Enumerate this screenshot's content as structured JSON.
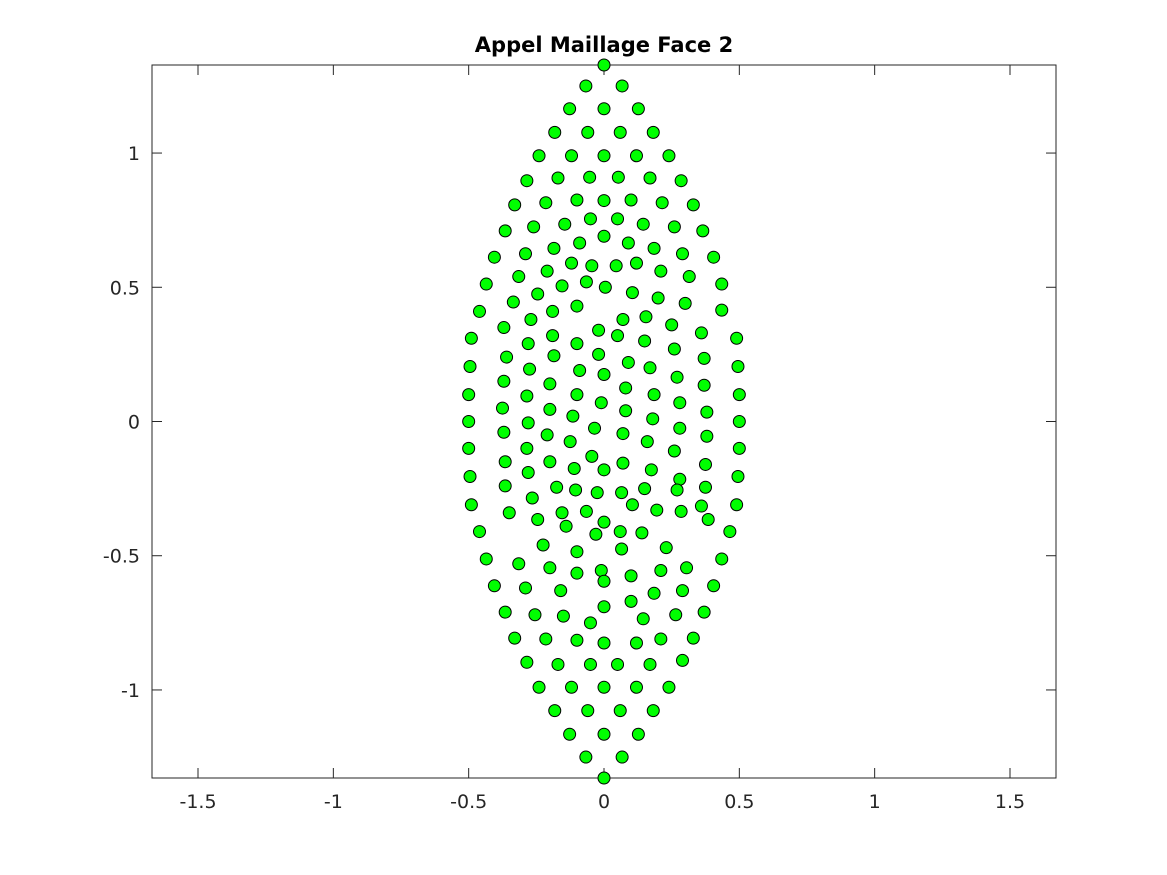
{
  "chart_data": {
    "type": "scatter",
    "title": "Appel Maillage Face 2",
    "xlabel": "",
    "ylabel": "",
    "xlim": [
      -1.67,
      1.67
    ],
    "ylim": [
      -1.328,
      1.328
    ],
    "xticks": [
      -1.5,
      -1,
      -0.5,
      0,
      0.5,
      1,
      1.5
    ],
    "xtick_labels": [
      "-1.5",
      "-1",
      "-0.5",
      "0",
      "0.5",
      "1",
      "1.5"
    ],
    "yticks": [
      -1,
      -0.5,
      0,
      0.5,
      1
    ],
    "ytick_labels": [
      "-1",
      "-0.5",
      "0",
      "0.5",
      "1"
    ],
    "grid": false,
    "legend": "none",
    "marker": {
      "shape": "circle",
      "face_color": "#00ff00",
      "edge_color": "#000000"
    },
    "axis_color": "#262626",
    "series": [
      {
        "points": [
          [
            0,
            1.328
          ],
          [
            -0.067,
            1.25
          ],
          [
            0.067,
            1.25
          ],
          [
            -0.127,
            1.165
          ],
          [
            0,
            1.165
          ],
          [
            0.127,
            1.165
          ],
          [
            -0.182,
            1.077
          ],
          [
            -0.06,
            1.077
          ],
          [
            0.06,
            1.077
          ],
          [
            0.182,
            1.077
          ],
          [
            -0.24,
            0.99
          ],
          [
            -0.12,
            0.99
          ],
          [
            0,
            0.99
          ],
          [
            0.12,
            0.99
          ],
          [
            0.24,
            0.99
          ],
          [
            -0.285,
            0.897
          ],
          [
            -0.17,
            0.907
          ],
          [
            -0.053,
            0.91
          ],
          [
            0.053,
            0.91
          ],
          [
            0.17,
            0.907
          ],
          [
            0.285,
            0.897
          ],
          [
            -0.33,
            0.807
          ],
          [
            -0.215,
            0.815
          ],
          [
            -0.1,
            0.825
          ],
          [
            0,
            0.823
          ],
          [
            0.1,
            0.825
          ],
          [
            0.215,
            0.815
          ],
          [
            0.33,
            0.807
          ],
          [
            -0.365,
            0.71
          ],
          [
            -0.26,
            0.725
          ],
          [
            -0.145,
            0.735
          ],
          [
            -0.05,
            0.755
          ],
          [
            0.05,
            0.755
          ],
          [
            0.145,
            0.735
          ],
          [
            0.26,
            0.725
          ],
          [
            0.365,
            0.71
          ],
          [
            -0.405,
            0.612
          ],
          [
            -0.29,
            0.625
          ],
          [
            -0.185,
            0.645
          ],
          [
            -0.09,
            0.665
          ],
          [
            0,
            0.69
          ],
          [
            0.09,
            0.665
          ],
          [
            0.185,
            0.645
          ],
          [
            0.29,
            0.625
          ],
          [
            0.405,
            0.612
          ],
          [
            -0.435,
            0.512
          ],
          [
            -0.315,
            0.54
          ],
          [
            -0.21,
            0.56
          ],
          [
            -0.12,
            0.59
          ],
          [
            -0.045,
            0.58
          ],
          [
            0.045,
            0.58
          ],
          [
            0.12,
            0.59
          ],
          [
            0.21,
            0.56
          ],
          [
            0.315,
            0.54
          ],
          [
            0.435,
            0.512
          ],
          [
            -0.46,
            0.41
          ],
          [
            -0.335,
            0.445
          ],
          [
            -0.245,
            0.475
          ],
          [
            -0.155,
            0.505
          ],
          [
            -0.065,
            0.52
          ],
          [
            0.005,
            0.5
          ],
          [
            0.105,
            0.48
          ],
          [
            0.2,
            0.46
          ],
          [
            0.3,
            0.44
          ],
          [
            0.435,
            0.415
          ],
          [
            -0.49,
            0.31
          ],
          [
            -0.37,
            0.35
          ],
          [
            -0.27,
            0.38
          ],
          [
            -0.19,
            0.41
          ],
          [
            -0.1,
            0.43
          ],
          [
            -0.02,
            0.34
          ],
          [
            0.07,
            0.38
          ],
          [
            0.155,
            0.39
          ],
          [
            0.25,
            0.36
          ],
          [
            0.36,
            0.33
          ],
          [
            0.49,
            0.31
          ],
          [
            -0.495,
            0.205
          ],
          [
            -0.36,
            0.24
          ],
          [
            -0.28,
            0.29
          ],
          [
            -0.19,
            0.32
          ],
          [
            -0.1,
            0.29
          ],
          [
            -0.02,
            0.25
          ],
          [
            0.05,
            0.32
          ],
          [
            0.15,
            0.3
          ],
          [
            0.26,
            0.27
          ],
          [
            0.37,
            0.235
          ],
          [
            0.495,
            0.205
          ],
          [
            -0.5,
            0.1
          ],
          [
            -0.37,
            0.15
          ],
          [
            -0.275,
            0.195
          ],
          [
            -0.185,
            0.245
          ],
          [
            -0.09,
            0.19
          ],
          [
            0,
            0.175
          ],
          [
            0.09,
            0.22
          ],
          [
            0.17,
            0.2
          ],
          [
            0.27,
            0.165
          ],
          [
            0.37,
            0.135
          ],
          [
            0.5,
            0.1
          ],
          [
            -0.5,
            0
          ],
          [
            -0.375,
            0.05
          ],
          [
            -0.285,
            0.095
          ],
          [
            -0.2,
            0.14
          ],
          [
            -0.1,
            0.1
          ],
          [
            -0.01,
            0.07
          ],
          [
            0.08,
            0.125
          ],
          [
            0.185,
            0.1
          ],
          [
            0.28,
            0.07
          ],
          [
            0.38,
            0.035
          ],
          [
            0.5,
            0
          ],
          [
            -0.5,
            -0.1
          ],
          [
            -0.37,
            -0.04
          ],
          [
            -0.28,
            -0.005
          ],
          [
            -0.2,
            0.045
          ],
          [
            -0.115,
            0.02
          ],
          [
            -0.035,
            -0.025
          ],
          [
            0.08,
            0.04
          ],
          [
            0.18,
            0.01
          ],
          [
            0.28,
            -0.025
          ],
          [
            0.38,
            -0.055
          ],
          [
            0.5,
            -0.1
          ],
          [
            -0.495,
            -0.205
          ],
          [
            -0.365,
            -0.15
          ],
          [
            -0.285,
            -0.1
          ],
          [
            -0.21,
            -0.05
          ],
          [
            -0.125,
            -0.075
          ],
          [
            -0.045,
            -0.13
          ],
          [
            0.07,
            -0.045
          ],
          [
            0.16,
            -0.075
          ],
          [
            0.26,
            -0.11
          ],
          [
            0.375,
            -0.16
          ],
          [
            0.495,
            -0.205
          ],
          [
            -0.49,
            -0.31
          ],
          [
            -0.365,
            -0.24
          ],
          [
            -0.28,
            -0.19
          ],
          [
            -0.2,
            -0.15
          ],
          [
            -0.11,
            -0.175
          ],
          [
            0,
            -0.18
          ],
          [
            0.07,
            -0.155
          ],
          [
            0.175,
            -0.18
          ],
          [
            0.28,
            -0.215
          ],
          [
            0.375,
            -0.245
          ],
          [
            0.49,
            -0.31
          ],
          [
            -0.46,
            -0.41
          ],
          [
            -0.35,
            -0.34
          ],
          [
            -0.265,
            -0.285
          ],
          [
            -0.175,
            -0.245
          ],
          [
            -0.105,
            -0.255
          ],
          [
            -0.025,
            -0.265
          ],
          [
            0.065,
            -0.265
          ],
          [
            0.15,
            -0.25
          ],
          [
            0.27,
            -0.255
          ],
          [
            0.36,
            -0.315
          ],
          [
            0.465,
            -0.41
          ],
          [
            -0.435,
            -0.512
          ],
          [
            -0.315,
            -0.53
          ],
          [
            -0.245,
            -0.365
          ],
          [
            -0.155,
            -0.34
          ],
          [
            -0.065,
            -0.335
          ],
          [
            0,
            -0.375
          ],
          [
            0.105,
            -0.31
          ],
          [
            0.195,
            -0.33
          ],
          [
            0.285,
            -0.335
          ],
          [
            0.385,
            -0.365
          ],
          [
            0.435,
            -0.512
          ],
          [
            -0.405,
            -0.612
          ],
          [
            -0.29,
            -0.62
          ],
          [
            -0.225,
            -0.46
          ],
          [
            -0.14,
            -0.39
          ],
          [
            -0.03,
            -0.42
          ],
          [
            0.06,
            -0.41
          ],
          [
            0.14,
            -0.415
          ],
          [
            0.23,
            -0.47
          ],
          [
            0.305,
            -0.545
          ],
          [
            0.405,
            -0.612
          ],
          [
            -0.365,
            -0.71
          ],
          [
            -0.255,
            -0.72
          ],
          [
            -0.2,
            -0.545
          ],
          [
            -0.1,
            -0.485
          ],
          [
            -0.01,
            -0.555
          ],
          [
            0.065,
            -0.475
          ],
          [
            0.21,
            -0.555
          ],
          [
            0.29,
            -0.63
          ],
          [
            0.37,
            -0.71
          ],
          [
            -0.33,
            -0.807
          ],
          [
            -0.215,
            -0.81
          ],
          [
            -0.15,
            -0.725
          ],
          [
            -0.1,
            -0.565
          ],
          [
            0,
            -0.595
          ],
          [
            0.1,
            -0.575
          ],
          [
            0.145,
            -0.735
          ],
          [
            0.265,
            -0.72
          ],
          [
            0.33,
            -0.807
          ],
          [
            -0.285,
            -0.897
          ],
          [
            -0.16,
            -0.63
          ],
          [
            -0.1,
            -0.815
          ],
          [
            -0.05,
            -0.75
          ],
          [
            0,
            -0.69
          ],
          [
            0.1,
            -0.67
          ],
          [
            0.185,
            -0.64
          ],
          [
            0.21,
            -0.81
          ],
          [
            0.29,
            -0.89
          ],
          [
            -0.24,
            -0.99
          ],
          [
            -0.17,
            -0.905
          ],
          [
            -0.05,
            -0.905
          ],
          [
            0,
            -0.825
          ],
          [
            0.05,
            -0.905
          ],
          [
            0.12,
            -0.825
          ],
          [
            0.17,
            -0.905
          ],
          [
            -0.12,
            -0.99
          ],
          [
            0,
            -0.99
          ],
          [
            0.12,
            -0.99
          ],
          [
            0.24,
            -0.99
          ],
          [
            -0.182,
            -1.077
          ],
          [
            -0.06,
            -1.077
          ],
          [
            0.06,
            -1.077
          ],
          [
            0.182,
            -1.077
          ],
          [
            -0.127,
            -1.165
          ],
          [
            0,
            -1.165
          ],
          [
            0.127,
            -1.165
          ],
          [
            -0.067,
            -1.25
          ],
          [
            0.067,
            -1.25
          ],
          [
            0,
            -1.328
          ]
        ]
      }
    ]
  }
}
